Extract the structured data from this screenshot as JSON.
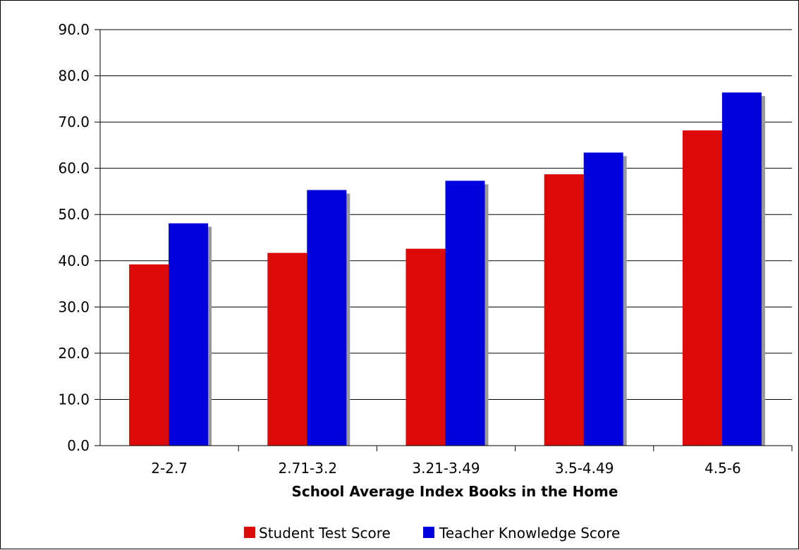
{
  "chart_data": {
    "type": "bar",
    "categories": [
      "2-2.7",
      "2.71-3.2",
      "3.21-3.49",
      "3.5-4.49",
      "4.5-6"
    ],
    "series": [
      {
        "name": "Student Test Score",
        "color": "#dd0808",
        "values": [
          39.2,
          41.7,
          42.6,
          58.7,
          68.2
        ]
      },
      {
        "name": "Teacher Knowledge Score",
        "color": "#0000dd",
        "values": [
          48.1,
          55.3,
          57.3,
          63.4,
          76.4
        ]
      }
    ],
    "shadow_color": "#999999",
    "xlabel": "School Average Index Books in the Home",
    "ylabel": "",
    "ylim": [
      0,
      90
    ],
    "yticks": [
      "0.0",
      "10.0",
      "20.0",
      "30.0",
      "40.0",
      "50.0",
      "60.0",
      "70.0",
      "80.0",
      "90.0"
    ],
    "grid": true,
    "legend_position": "bottom"
  }
}
